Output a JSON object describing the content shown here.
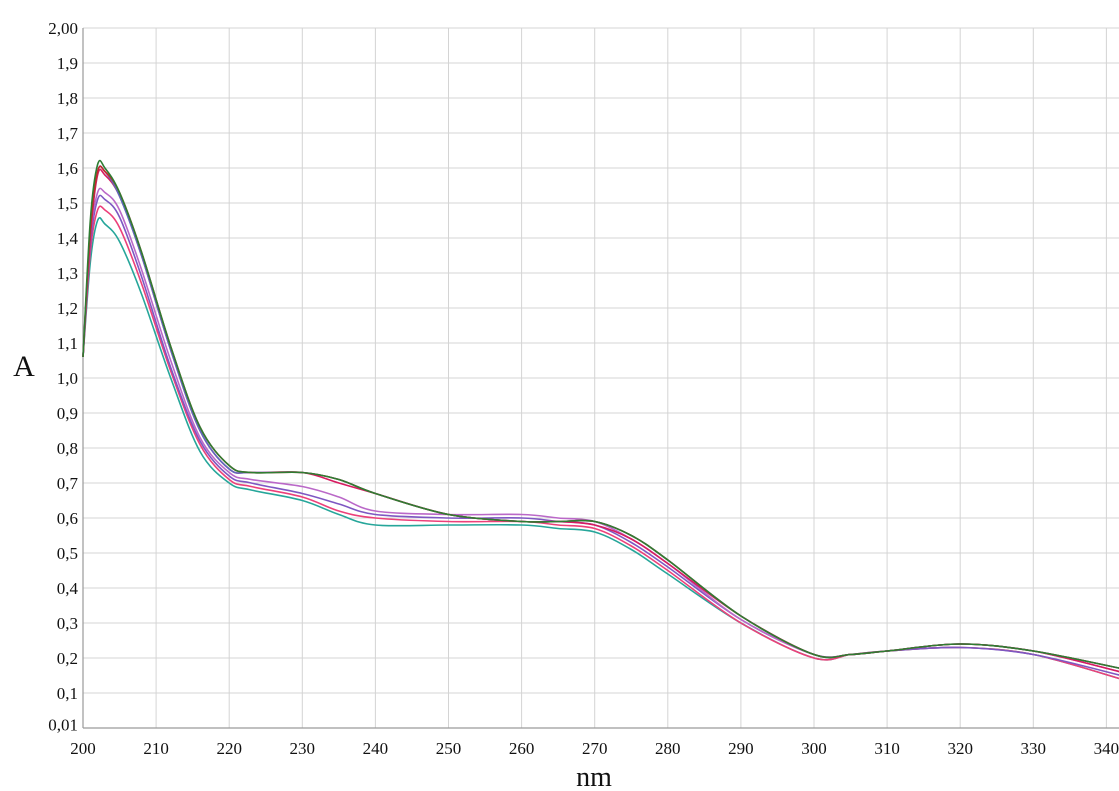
{
  "chart_data": {
    "type": "line",
    "title": "",
    "xlabel": "nm",
    "ylabel": "A",
    "xlim": [
      200,
      342
    ],
    "ylim": [
      0,
      2.0
    ],
    "grid": true,
    "legend": "none",
    "x_ticks": [
      {
        "value": 200,
        "label": "200"
      },
      {
        "value": 210,
        "label": "210"
      },
      {
        "value": 220,
        "label": "220"
      },
      {
        "value": 230,
        "label": "230"
      },
      {
        "value": 240,
        "label": "240"
      },
      {
        "value": 250,
        "label": "250"
      },
      {
        "value": 260,
        "label": "260"
      },
      {
        "value": 270,
        "label": "270"
      },
      {
        "value": 280,
        "label": "280"
      },
      {
        "value": 290,
        "label": "290"
      },
      {
        "value": 300,
        "label": "300"
      },
      {
        "value": 310,
        "label": "310"
      },
      {
        "value": 320,
        "label": "320"
      },
      {
        "value": 330,
        "label": "330"
      },
      {
        "value": 340,
        "label": "340"
      }
    ],
    "y_ticks": [
      {
        "value": 0.01,
        "label": "0,01"
      },
      {
        "value": 0.1,
        "label": "0,1"
      },
      {
        "value": 0.2,
        "label": "0,2"
      },
      {
        "value": 0.3,
        "label": "0,3"
      },
      {
        "value": 0.4,
        "label": "0,4"
      },
      {
        "value": 0.5,
        "label": "0,5"
      },
      {
        "value": 0.6,
        "label": "0,6"
      },
      {
        "value": 0.7,
        "label": "0,7"
      },
      {
        "value": 0.8,
        "label": "0,8"
      },
      {
        "value": 0.9,
        "label": "0,9"
      },
      {
        "value": 1.0,
        "label": "1,0"
      },
      {
        "value": 1.1,
        "label": "1,1"
      },
      {
        "value": 1.2,
        "label": "1,2"
      },
      {
        "value": 1.3,
        "label": "1,3"
      },
      {
        "value": 1.4,
        "label": "1,4"
      },
      {
        "value": 1.5,
        "label": "1,5"
      },
      {
        "value": 1.6,
        "label": "1,6"
      },
      {
        "value": 1.7,
        "label": "1,7"
      },
      {
        "value": 1.8,
        "label": "1,8"
      },
      {
        "value": 1.9,
        "label": "1,9"
      },
      {
        "value": 2.0,
        "label": "2,00"
      }
    ],
    "x": [
      200,
      201,
      202,
      203,
      205,
      208,
      212,
      216,
      220,
      223,
      230,
      235,
      240,
      250,
      260,
      265,
      270,
      275,
      280,
      290,
      300,
      305,
      310,
      320,
      330,
      342
    ],
    "series": [
      {
        "color": "#2e7d32",
        "values": [
          1.06,
          1.45,
          1.61,
          1.6,
          1.53,
          1.36,
          1.09,
          0.86,
          0.75,
          0.73,
          0.73,
          0.71,
          0.67,
          0.61,
          0.59,
          0.59,
          0.59,
          0.55,
          0.48,
          0.32,
          0.21,
          0.21,
          0.22,
          0.24,
          0.22,
          0.17
        ]
      },
      {
        "color": "#c62828",
        "values": [
          1.06,
          1.42,
          1.59,
          1.59,
          1.53,
          1.36,
          1.09,
          0.86,
          0.75,
          0.73,
          0.73,
          0.71,
          0.67,
          0.61,
          0.59,
          0.59,
          0.59,
          0.55,
          0.48,
          0.32,
          0.21,
          0.21,
          0.22,
          0.24,
          0.22,
          0.17
        ]
      },
      {
        "color": "#5c6bc0",
        "values": [
          1.06,
          1.42,
          1.59,
          1.59,
          1.52,
          1.35,
          1.08,
          0.85,
          0.74,
          0.73,
          0.73,
          0.71,
          0.67,
          0.61,
          0.59,
          0.59,
          0.59,
          0.55,
          0.48,
          0.32,
          0.21,
          0.21,
          0.22,
          0.24,
          0.22,
          0.17
        ]
      },
      {
        "color": "#d81b60",
        "values": [
          1.06,
          1.4,
          1.58,
          1.58,
          1.52,
          1.35,
          1.08,
          0.85,
          0.74,
          0.73,
          0.73,
          0.7,
          0.67,
          0.61,
          0.59,
          0.59,
          0.58,
          0.54,
          0.47,
          0.32,
          0.21,
          0.21,
          0.22,
          0.24,
          0.22,
          0.16
        ]
      },
      {
        "color": "#ba68c8",
        "values": [
          1.06,
          1.4,
          1.53,
          1.53,
          1.48,
          1.31,
          1.05,
          0.83,
          0.73,
          0.71,
          0.69,
          0.66,
          0.62,
          0.61,
          0.61,
          0.6,
          0.59,
          0.54,
          0.47,
          0.31,
          0.21,
          0.21,
          0.22,
          0.24,
          0.22,
          0.16
        ]
      },
      {
        "color": "#7e57c2",
        "values": [
          1.06,
          1.38,
          1.51,
          1.51,
          1.46,
          1.29,
          1.03,
          0.82,
          0.72,
          0.7,
          0.67,
          0.64,
          0.61,
          0.6,
          0.6,
          0.59,
          0.58,
          0.53,
          0.46,
          0.31,
          0.21,
          0.21,
          0.22,
          0.23,
          0.21,
          0.15
        ]
      },
      {
        "color": "#ec407a",
        "values": [
          1.06,
          1.36,
          1.48,
          1.48,
          1.43,
          1.27,
          1.02,
          0.81,
          0.71,
          0.69,
          0.66,
          0.62,
          0.6,
          0.59,
          0.59,
          0.58,
          0.57,
          0.52,
          0.45,
          0.3,
          0.2,
          0.21,
          0.22,
          0.23,
          0.21,
          0.14
        ]
      },
      {
        "color": "#26a69a",
        "values": [
          1.06,
          1.33,
          1.45,
          1.44,
          1.39,
          1.24,
          1.0,
          0.79,
          0.7,
          0.68,
          0.65,
          0.61,
          0.58,
          0.58,
          0.58,
          0.57,
          0.56,
          0.51,
          0.44,
          0.3,
          0.2,
          0.21,
          0.22,
          0.23,
          0.21,
          0.14
        ]
      }
    ]
  }
}
